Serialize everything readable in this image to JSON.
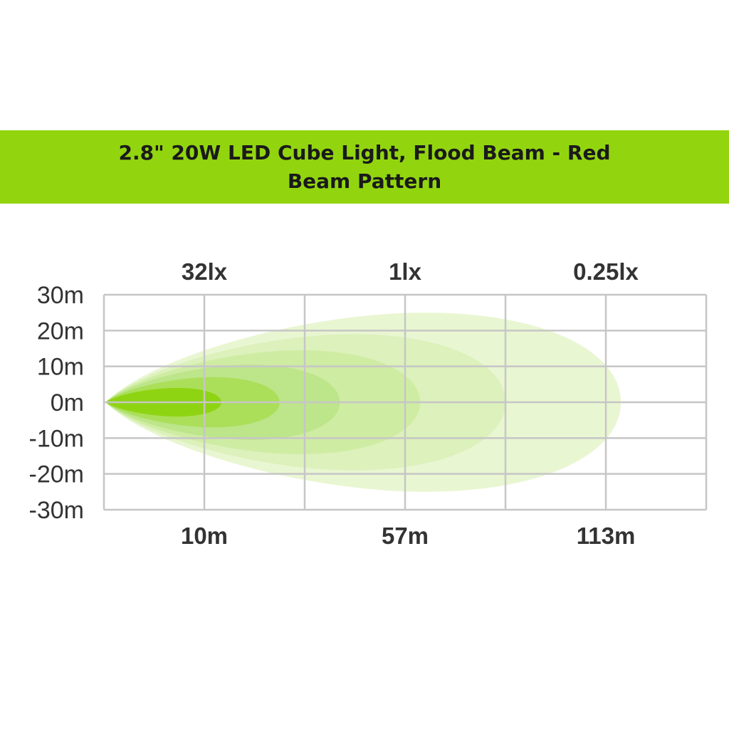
{
  "title": {
    "line1": "2.8\" 20W LED Cube Light, Flood Beam - Red",
    "line2": "Beam Pattern"
  },
  "colors": {
    "banner": "#92d50f",
    "grid": "#c6c6c6",
    "text": "#333333"
  },
  "chart_data": {
    "type": "beam-pattern",
    "y_ticks": [
      "30m",
      "20m",
      "10m",
      "0m",
      "-10m",
      "-20m",
      "-30m"
    ],
    "y_values": [
      30,
      20,
      10,
      0,
      -10,
      -20,
      -30
    ],
    "ylim": [
      -30,
      30
    ],
    "grid": true,
    "top_labels": [
      {
        "label": "32lx",
        "column": 1
      },
      {
        "label": "1lx",
        "column": 3
      },
      {
        "label": "0.25lx",
        "column": 5
      }
    ],
    "bottom_labels": [
      {
        "label": "10m",
        "column": 1
      },
      {
        "label": "57m",
        "column": 3
      },
      {
        "label": "113m",
        "column": 5
      }
    ],
    "beam_contours": [
      {
        "color": "#e9f6d2",
        "reach_columns": 5.15,
        "half_width_m": 25
      },
      {
        "color": "#dcf1bb",
        "reach_columns": 4.0,
        "half_width_m": 19
      },
      {
        "color": "#cfeca3",
        "reach_columns": 3.15,
        "half_width_m": 14.5
      },
      {
        "color": "#bde58a",
        "reach_columns": 2.35,
        "half_width_m": 10.5
      },
      {
        "color": "#abdf5a",
        "reach_columns": 1.75,
        "half_width_m": 7
      },
      {
        "color": "#8fd413",
        "reach_columns": 1.17,
        "half_width_m": 4
      }
    ]
  }
}
